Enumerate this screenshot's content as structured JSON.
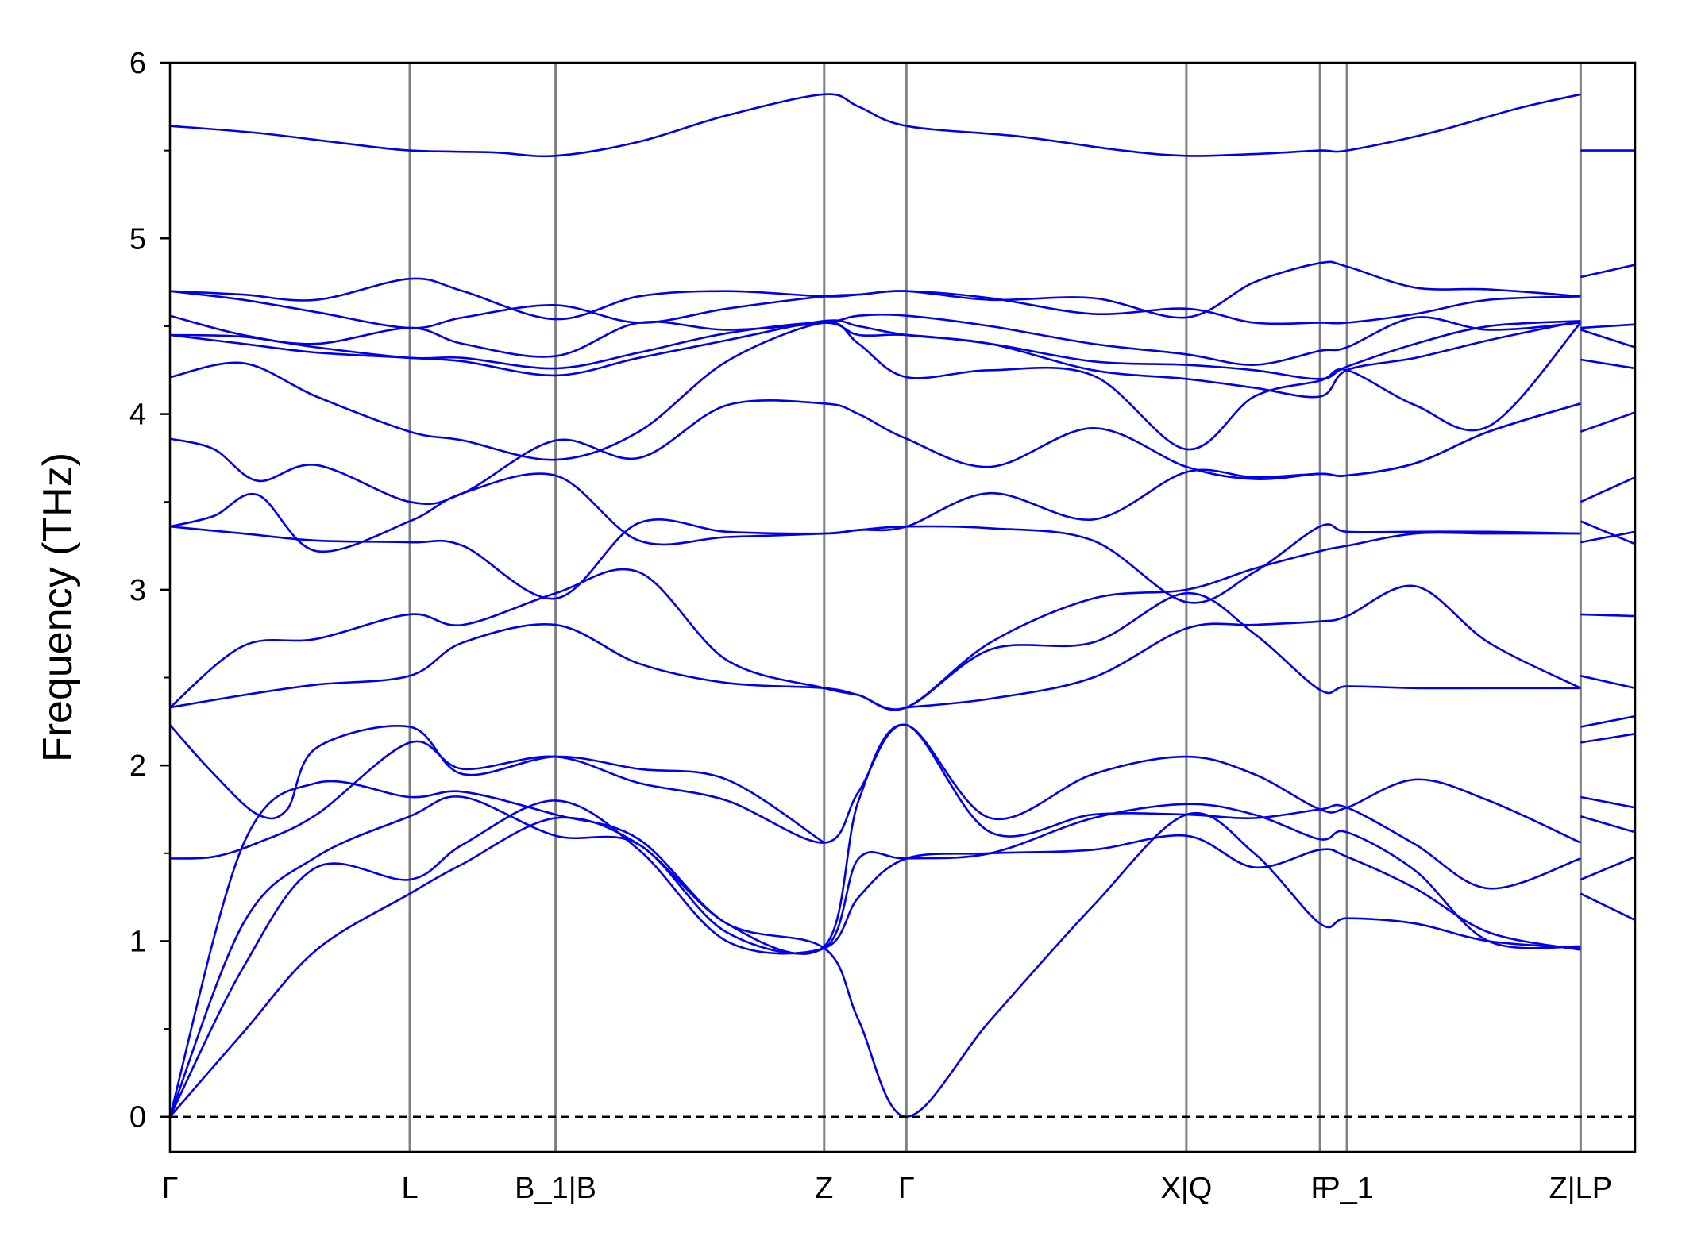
{
  "chart_data": {
    "type": "line",
    "title": "",
    "xlabel": "",
    "ylabel": "Frequency (THz)",
    "ylim": [
      -0.2,
      6
    ],
    "y_ticks": [
      0,
      1,
      2,
      3,
      4,
      5,
      6
    ],
    "y_minor_step": 0.5,
    "grid": false,
    "legend": "none",
    "colors": {
      "bands": "#0000ee",
      "kpath_lines": "#808080",
      "zero_line": "#000000"
    },
    "kpath": [
      {
        "label": "Γ",
        "x": 0.0
      },
      {
        "label": "L",
        "x": 1.637
      },
      {
        "label": "B_1|B",
        "x": 2.632
      },
      {
        "label": "Z",
        "x": 4.465
      },
      {
        "label": "Γ",
        "x": 5.026
      },
      {
        "label": "X|Q",
        "x": 6.937
      },
      {
        "label": "F",
        "x": 7.849
      },
      {
        "label": "P_1",
        "x": 8.033
      },
      {
        "label": "Z|LP",
        "x": 9.628
      }
    ],
    "xlim": [
      0.0,
      10.0
    ],
    "series": [
      {
        "x": [
          0,
          0.5,
          1.0,
          1.637,
          2.0,
          2.632,
          3.2,
          3.8,
          4.465,
          4.7,
          5.026,
          5.6,
          6.3,
          6.937,
          7.4,
          7.849,
          8.033,
          8.5,
          9.0,
          9.628
        ],
        "values": [
          0,
          0.48,
          0.95,
          1.27,
          1.44,
          1.7,
          1.55,
          1.1,
          0.96,
          0.55,
          0,
          0.55,
          1.2,
          1.72,
          1.5,
          1.1,
          1.13,
          1.1,
          1.0,
          0.96
        ]
      },
      {
        "x": [
          0,
          0.5,
          1.0,
          1.637,
          2.0,
          2.632,
          3.2,
          3.8,
          4.465,
          4.7,
          5.026,
          5.6,
          6.3,
          6.937,
          7.4,
          7.849,
          8.033,
          8.5,
          9.0,
          9.628
        ],
        "values": [
          0,
          0.85,
          1.42,
          1.35,
          1.55,
          1.8,
          1.52,
          1.0,
          0.96,
          1.25,
          1.47,
          1.5,
          1.52,
          1.6,
          1.42,
          1.52,
          1.48,
          1.3,
          1.05,
          0.95
        ]
      },
      {
        "x": [
          0,
          0.5,
          1.0,
          1.637,
          2.0,
          2.632,
          3.2,
          3.8,
          4.465,
          4.7,
          5.026,
          5.6,
          6.3,
          6.937,
          7.4,
          7.849,
          8.033,
          8.5,
          9.0,
          9.628
        ],
        "values": [
          0,
          1.1,
          1.48,
          1.71,
          1.82,
          1.6,
          1.55,
          1.05,
          0.96,
          1.47,
          1.47,
          1.5,
          1.7,
          1.78,
          1.72,
          1.58,
          1.62,
          1.4,
          1.0,
          0.97
        ]
      },
      {
        "x": [
          0,
          0.5,
          1.0,
          1.637,
          2.0,
          2.632,
          3.2,
          3.8,
          4.465,
          4.7,
          5.026,
          5.6,
          6.3,
          6.937,
          7.4,
          7.849,
          8.033,
          8.5,
          9.0,
          9.628
        ],
        "values": [
          0,
          1.55,
          1.9,
          1.82,
          1.85,
          1.72,
          1.58,
          1.1,
          0.97,
          1.8,
          2.23,
          1.62,
          1.72,
          1.72,
          1.7,
          1.75,
          1.76,
          1.55,
          1.3,
          1.47
        ]
      },
      {
        "x": [
          0,
          0.3,
          0.6,
          1.0,
          1.637,
          2.0,
          2.632,
          3.2,
          3.8,
          4.465,
          4.7,
          5.026,
          5.6,
          6.3,
          6.937,
          7.4,
          7.849,
          8.033,
          8.5,
          9.0,
          9.628
        ],
        "values": [
          1.47,
          1.48,
          1.56,
          1.72,
          2.13,
          1.98,
          2.05,
          1.9,
          1.8,
          1.56,
          1.85,
          2.23,
          1.7,
          1.95,
          2.05,
          1.95,
          1.75,
          1.76,
          1.92,
          1.8,
          1.56
        ]
      },
      {
        "x": [
          0,
          0.3,
          0.6,
          0.8,
          1.0,
          1.637,
          2.0,
          2.632,
          3.2,
          3.8,
          4.465
        ],
        "values": [
          2.23,
          1.95,
          1.72,
          1.75,
          2.1,
          2.22,
          1.95,
          2.05,
          1.98,
          1.92,
          1.56
        ]
      },
      {
        "x": [
          5.026,
          5.6,
          6.3,
          6.937,
          7.4,
          7.849,
          8.033,
          8.5,
          9.0,
          9.628
        ],
        "values": [
          2.33,
          2.38,
          2.5,
          2.78,
          2.8,
          2.82,
          2.85,
          3.02,
          2.7,
          2.44
        ]
      },
      {
        "x": [
          0,
          0.5,
          1.0,
          1.637,
          2.0,
          2.632,
          3.2,
          3.8,
          4.465,
          4.7,
          5.026,
          5.6,
          6.3,
          6.937,
          7.4,
          7.849,
          8.033,
          8.5,
          9.0,
          9.628
        ],
        "values": [
          2.33,
          2.4,
          2.46,
          2.51,
          2.7,
          2.8,
          2.58,
          2.47,
          2.44,
          2.4,
          2.33,
          2.66,
          2.7,
          2.98,
          2.75,
          2.43,
          2.45,
          2.44,
          2.44,
          2.44
        ]
      },
      {
        "x": [
          0,
          0.5,
          1.0,
          1.637,
          2.0,
          2.632,
          3.2,
          3.8,
          4.465,
          4.7,
          5.026,
          5.6,
          6.3,
          6.937,
          7.4,
          7.849,
          8.033,
          8.5,
          9.0,
          9.628
        ],
        "values": [
          2.33,
          2.68,
          2.72,
          2.86,
          2.8,
          2.98,
          3.1,
          2.6,
          2.44,
          2.4,
          2.33,
          2.7,
          2.95,
          3.0,
          3.12,
          3.22,
          3.25,
          3.32,
          3.32,
          3.32
        ]
      },
      {
        "x": [
          0,
          0.5,
          1.0,
          1.637,
          2.0,
          2.632,
          3.2,
          3.8,
          4.465,
          4.7,
          5.026,
          5.6,
          6.3,
          6.937,
          7.4,
          7.849,
          8.033,
          8.5,
          9.0,
          9.628
        ],
        "values": [
          3.36,
          3.32,
          3.28,
          3.27,
          3.25,
          2.95,
          3.38,
          3.33,
          3.32,
          3.34,
          3.36,
          3.35,
          3.28,
          2.93,
          3.1,
          3.36,
          3.33,
          3.33,
          3.33,
          3.32
        ]
      },
      {
        "x": [
          0,
          0.3,
          0.6,
          1.0,
          1.637,
          2.0,
          2.632,
          3.2,
          3.8,
          4.465,
          4.7,
          5.026,
          5.6,
          6.3,
          6.937,
          7.4,
          7.849,
          8.033,
          8.5,
          9.0,
          9.628
        ],
        "values": [
          3.36,
          3.42,
          3.54,
          3.22,
          3.39,
          3.55,
          3.65,
          3.28,
          3.3,
          3.32,
          3.34,
          3.36,
          3.55,
          3.4,
          3.67,
          3.64,
          3.66,
          3.65,
          3.72,
          3.9,
          4.06
        ]
      },
      {
        "x": [
          0,
          0.3,
          0.6,
          1.0,
          1.637,
          2.0,
          2.632,
          3.2,
          3.8,
          4.465,
          4.7,
          5.026,
          5.6,
          6.3,
          6.937,
          7.4,
          7.849,
          8.033,
          8.5,
          9.0,
          9.628
        ],
        "values": [
          3.86,
          3.8,
          3.62,
          3.71,
          3.5,
          3.55,
          3.85,
          3.75,
          4.05,
          4.06,
          4.0,
          3.86,
          3.7,
          3.92,
          3.7,
          3.63,
          3.66,
          3.65,
          3.72,
          3.9,
          4.06
        ]
      },
      {
        "x": [
          0,
          0.5,
          1.0,
          1.637,
          2.0,
          2.632,
          3.2,
          3.8,
          4.465,
          4.7,
          5.026,
          5.6,
          6.3,
          6.937,
          7.4,
          7.849,
          8.033,
          8.5,
          9.0,
          9.628
        ],
        "values": [
          4.21,
          4.29,
          4.1,
          3.9,
          3.85,
          3.74,
          3.9,
          4.3,
          4.52,
          4.4,
          4.21,
          4.25,
          4.22,
          3.8,
          4.1,
          4.19,
          4.25,
          4.05,
          3.93,
          4.52
        ]
      },
      {
        "x": [
          0,
          0.5,
          1.0,
          1.637,
          2.0,
          2.632,
          3.2,
          3.8,
          4.465,
          4.7,
          5.026,
          5.6,
          6.3,
          6.937,
          7.4,
          7.849,
          8.033,
          8.5,
          9.0,
          9.628
        ],
        "values": [
          4.45,
          4.4,
          4.35,
          4.32,
          4.3,
          4.22,
          4.32,
          4.42,
          4.53,
          4.5,
          4.45,
          4.4,
          4.25,
          4.2,
          4.15,
          4.1,
          4.25,
          4.32,
          4.42,
          4.53
        ]
      },
      {
        "x": [
          0,
          0.5,
          1.0,
          1.637,
          2.0,
          2.632,
          3.2,
          3.8,
          4.465,
          4.7,
          5.026,
          5.6,
          6.3,
          6.937,
          7.4,
          7.849,
          8.033,
          8.5,
          9.0,
          9.628
        ],
        "values": [
          4.45,
          4.44,
          4.38,
          4.32,
          4.32,
          4.26,
          4.35,
          4.46,
          4.52,
          4.45,
          4.45,
          4.4,
          4.3,
          4.28,
          4.25,
          4.2,
          4.27,
          4.4,
          4.5,
          4.53
        ]
      },
      {
        "x": [
          0,
          0.5,
          1.0,
          1.637,
          2.0,
          2.632,
          3.2,
          3.8,
          4.465,
          4.7,
          5.026,
          5.6,
          6.3,
          6.937,
          7.4,
          7.849,
          8.033,
          8.5,
          9.0,
          9.628
        ],
        "values": [
          4.56,
          4.45,
          4.4,
          4.49,
          4.4,
          4.33,
          4.52,
          4.48,
          4.52,
          4.56,
          4.56,
          4.5,
          4.4,
          4.34,
          4.28,
          4.36,
          4.38,
          4.55,
          4.48,
          4.52
        ]
      },
      {
        "x": [
          0,
          0.5,
          1.0,
          1.637,
          2.0,
          2.632,
          3.2,
          3.8,
          4.465,
          4.7,
          5.026,
          5.6,
          6.3,
          6.937,
          7.4,
          7.849,
          8.033,
          8.5,
          9.0,
          9.628
        ],
        "values": [
          4.7,
          4.65,
          4.58,
          4.49,
          4.55,
          4.62,
          4.52,
          4.6,
          4.67,
          4.68,
          4.7,
          4.66,
          4.57,
          4.6,
          4.52,
          4.52,
          4.52,
          4.57,
          4.65,
          4.67
        ]
      },
      {
        "x": [
          0,
          0.5,
          1.0,
          1.637,
          2.0,
          2.632,
          3.2,
          3.8,
          4.465,
          4.7,
          5.026,
          5.6,
          6.3,
          6.937,
          7.4,
          7.849,
          8.033,
          8.5,
          9.0,
          9.628
        ],
        "values": [
          4.7,
          4.68,
          4.65,
          4.77,
          4.7,
          4.54,
          4.67,
          4.7,
          4.67,
          4.68,
          4.7,
          4.65,
          4.66,
          4.55,
          4.75,
          4.86,
          4.84,
          4.72,
          4.71,
          4.67
        ]
      },
      {
        "x": [
          0,
          0.6,
          1.2,
          1.637,
          2.2,
          2.632,
          3.2,
          3.8,
          4.465,
          4.7,
          5.026,
          5.8,
          6.5,
          6.937,
          7.4,
          7.849,
          8.033,
          8.6,
          9.2,
          9.628
        ],
        "values": [
          5.64,
          5.6,
          5.54,
          5.5,
          5.49,
          5.47,
          5.55,
          5.7,
          5.82,
          5.75,
          5.64,
          5.58,
          5.5,
          5.47,
          5.48,
          5.5,
          5.5,
          5.6,
          5.74,
          5.82
        ]
      },
      {
        "x": [
          9.628,
          10.0
        ],
        "values": [
          5.5,
          5.5
        ]
      },
      {
        "x": [
          9.628,
          10.0
        ],
        "values": [
          4.78,
          4.85
        ]
      },
      {
        "x": [
          9.628,
          10.0
        ],
        "values": [
          4.49,
          4.51
        ]
      },
      {
        "x": [
          9.628,
          10.0
        ],
        "values": [
          4.48,
          4.38
        ]
      },
      {
        "x": [
          9.628,
          10.0
        ],
        "values": [
          4.31,
          4.26
        ]
      },
      {
        "x": [
          9.628,
          10.0
        ],
        "values": [
          3.9,
          4.01
        ]
      },
      {
        "x": [
          9.628,
          10.0
        ],
        "values": [
          3.5,
          3.64
        ]
      },
      {
        "x": [
          9.628,
          10.0
        ],
        "values": [
          3.39,
          3.26
        ]
      },
      {
        "x": [
          9.628,
          10.0
        ],
        "values": [
          3.27,
          3.33
        ]
      },
      {
        "x": [
          9.628,
          10.0
        ],
        "values": [
          2.86,
          2.85
        ]
      },
      {
        "x": [
          9.628,
          10.0
        ],
        "values": [
          2.51,
          2.44
        ]
      },
      {
        "x": [
          9.628,
          10.0
        ],
        "values": [
          2.22,
          2.28
        ]
      },
      {
        "x": [
          9.628,
          10.0
        ],
        "values": [
          2.13,
          2.18
        ]
      },
      {
        "x": [
          9.628,
          10.0
        ],
        "values": [
          1.82,
          1.76
        ]
      },
      {
        "x": [
          9.628,
          10.0
        ],
        "values": [
          1.71,
          1.62
        ]
      },
      {
        "x": [
          9.628,
          10.0
        ],
        "values": [
          1.35,
          1.48
        ]
      },
      {
        "x": [
          9.628,
          10.0
        ],
        "values": [
          1.27,
          1.12
        ]
      }
    ]
  }
}
